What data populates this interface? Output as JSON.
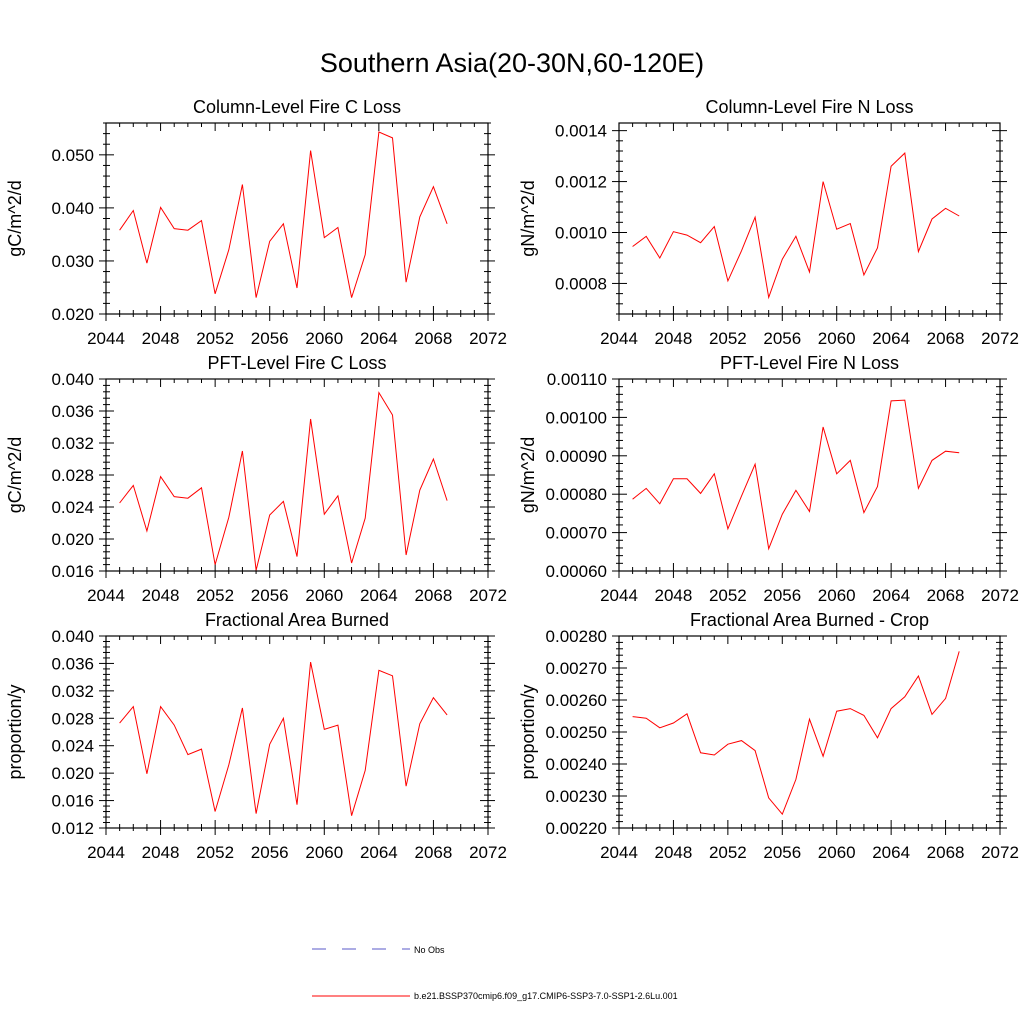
{
  "page": {
    "title": "Southern Asia(20-30N,60-120E)"
  },
  "legend": {
    "entries": [
      {
        "label": "No Obs",
        "style": "dashed",
        "color": "#5a5ac8"
      },
      {
        "label": "b.e21.BSSP370cmip6.f09_g17.CMIP6-SSP3-7.0-SSP1-2.6Lu.001",
        "style": "solid",
        "color": "#ff0000"
      }
    ]
  },
  "chart_data": [
    {
      "type": "line",
      "title": "Column-Level Fire C Loss",
      "ylabel": "gC/m^2/d",
      "xlim": [
        2044,
        2072
      ],
      "ylim": [
        0.02,
        0.056
      ],
      "xticks": [
        "2044",
        "2048",
        "2052",
        "2056",
        "2060",
        "2064",
        "2068",
        "2072"
      ],
      "yticks": [
        "0.020",
        "0.030",
        "0.040",
        "0.050"
      ],
      "series": [
        {
          "color": "#ff0000",
          "x": [
            2045,
            2046,
            2047,
            2048,
            2049,
            2050,
            2051,
            2052,
            2053,
            2054,
            2055,
            2056,
            2057,
            2058,
            2059,
            2060,
            2061,
            2062,
            2063,
            2064,
            2065,
            2066,
            2067,
            2068,
            2069
          ],
          "values": [
            0.0358,
            0.0395,
            0.0296,
            0.0401,
            0.0361,
            0.0358,
            0.0376,
            0.0238,
            0.0321,
            0.0444,
            0.0231,
            0.0337,
            0.037,
            0.0249,
            0.0508,
            0.0344,
            0.0363,
            0.0231,
            0.0312,
            0.0543,
            0.0532,
            0.026,
            0.0383,
            0.044,
            0.037
          ]
        }
      ]
    },
    {
      "type": "line",
      "title": "Column-Level Fire N Loss",
      "ylabel": "gN/m^2/d",
      "xlim": [
        2044,
        2072
      ],
      "ylim": [
        0.00068,
        0.00143
      ],
      "xticks": [
        "2044",
        "2048",
        "2052",
        "2056",
        "2060",
        "2064",
        "2068",
        "2072"
      ],
      "yticks": [
        "0.0008",
        "0.0010",
        "0.0012",
        "0.0014"
      ],
      "series": [
        {
          "color": "#ff0000",
          "x": [
            2045,
            2046,
            2047,
            2048,
            2049,
            2050,
            2051,
            2052,
            2053,
            2054,
            2055,
            2056,
            2057,
            2058,
            2059,
            2060,
            2061,
            2062,
            2063,
            2064,
            2065,
            2066,
            2067,
            2068,
            2069
          ],
          "values": [
            0.000945,
            0.000985,
            0.0009,
            0.001003,
            0.00099,
            0.00096,
            0.001023,
            0.00081,
            0.000928,
            0.00106,
            0.000745,
            0.000895,
            0.000985,
            0.000845,
            0.0012,
            0.001013,
            0.001035,
            0.000833,
            0.00094,
            0.00126,
            0.001312,
            0.000925,
            0.001053,
            0.001095,
            0.001065
          ]
        }
      ]
    },
    {
      "type": "line",
      "title": "PFT-Level Fire C Loss",
      "ylabel": "gC/m^2/d",
      "xlim": [
        2044,
        2072
      ],
      "ylim": [
        0.016,
        0.04
      ],
      "xticks": [
        "2044",
        "2048",
        "2052",
        "2056",
        "2060",
        "2064",
        "2068",
        "2072"
      ],
      "yticks": [
        "0.016",
        "0.020",
        "0.024",
        "0.028",
        "0.032",
        "0.036",
        "0.040"
      ],
      "series": [
        {
          "color": "#ff0000",
          "x": [
            2045,
            2046,
            2047,
            2048,
            2049,
            2050,
            2051,
            2052,
            2053,
            2054,
            2055,
            2056,
            2057,
            2058,
            2059,
            2060,
            2061,
            2062,
            2063,
            2064,
            2065,
            2066,
            2067,
            2068,
            2069
          ],
          "values": [
            0.0245,
            0.0267,
            0.021,
            0.0278,
            0.0253,
            0.0251,
            0.0264,
            0.0168,
            0.0227,
            0.031,
            0.0161,
            0.023,
            0.0247,
            0.0178,
            0.035,
            0.0231,
            0.0254,
            0.017,
            0.0226,
            0.0383,
            0.0355,
            0.018,
            0.0261,
            0.03,
            0.0248
          ]
        }
      ]
    },
    {
      "type": "line",
      "title": "PFT-Level Fire N Loss",
      "ylabel": "gN/m^2/d",
      "xlim": [
        2044,
        2072
      ],
      "ylim": [
        0.0006,
        0.0011
      ],
      "xticks": [
        "2044",
        "2048",
        "2052",
        "2056",
        "2060",
        "2064",
        "2068",
        "2072"
      ],
      "yticks": [
        "0.00060",
        "0.00070",
        "0.00080",
        "0.00090",
        "0.00100",
        "0.00110"
      ],
      "series": [
        {
          "color": "#ff0000",
          "x": [
            2045,
            2046,
            2047,
            2048,
            2049,
            2050,
            2051,
            2052,
            2053,
            2054,
            2055,
            2056,
            2057,
            2058,
            2059,
            2060,
            2061,
            2062,
            2063,
            2064,
            2065,
            2066,
            2067,
            2068,
            2069
          ],
          "values": [
            0.000787,
            0.000815,
            0.000775,
            0.00084,
            0.00084,
            0.000802,
            0.000853,
            0.00071,
            0.000795,
            0.000878,
            0.000658,
            0.000748,
            0.00081,
            0.000755,
            0.000975,
            0.000853,
            0.000888,
            0.000752,
            0.00082,
            0.001043,
            0.001045,
            0.000815,
            0.000888,
            0.000912,
            0.000908
          ]
        }
      ]
    },
    {
      "type": "line",
      "title": "Fractional Area Burned",
      "ylabel": "proportion/y",
      "xlim": [
        2044,
        2072
      ],
      "ylim": [
        0.012,
        0.04
      ],
      "xticks": [
        "2044",
        "2048",
        "2052",
        "2056",
        "2060",
        "2064",
        "2068",
        "2072"
      ],
      "yticks": [
        "0.012",
        "0.016",
        "0.020",
        "0.024",
        "0.028",
        "0.032",
        "0.036",
        "0.040"
      ],
      "series": [
        {
          "color": "#ff0000",
          "x": [
            2045,
            2046,
            2047,
            2048,
            2049,
            2050,
            2051,
            2052,
            2053,
            2054,
            2055,
            2056,
            2057,
            2058,
            2059,
            2060,
            2061,
            2062,
            2063,
            2064,
            2065,
            2066,
            2067,
            2068,
            2069
          ],
          "values": [
            0.0273,
            0.0297,
            0.0199,
            0.0297,
            0.027,
            0.0227,
            0.0235,
            0.0144,
            0.0212,
            0.0295,
            0.0141,
            0.0242,
            0.028,
            0.0154,
            0.0362,
            0.0264,
            0.027,
            0.0138,
            0.0204,
            0.035,
            0.0342,
            0.0181,
            0.0272,
            0.031,
            0.0285
          ]
        }
      ]
    },
    {
      "type": "line",
      "title": "Fractional Area Burned - Crop",
      "ylabel": "proportion/y",
      "xlim": [
        2044,
        2072
      ],
      "ylim": [
        0.0022,
        0.0028
      ],
      "xticks": [
        "2044",
        "2048",
        "2052",
        "2056",
        "2060",
        "2064",
        "2068",
        "2072"
      ],
      "yticks": [
        "0.00220",
        "0.00230",
        "0.00240",
        "0.00250",
        "0.00260",
        "0.00270",
        "0.00280"
      ],
      "series": [
        {
          "color": "#ff0000",
          "x": [
            2045,
            2046,
            2047,
            2048,
            2049,
            2050,
            2051,
            2052,
            2053,
            2054,
            2055,
            2056,
            2057,
            2058,
            2059,
            2060,
            2061,
            2062,
            2063,
            2064,
            2065,
            2066,
            2067,
            2068,
            2069
          ],
          "values": [
            0.002548,
            0.002543,
            0.002513,
            0.002528,
            0.002557,
            0.002435,
            0.002428,
            0.002462,
            0.002473,
            0.002442,
            0.002294,
            0.002243,
            0.002352,
            0.00254,
            0.002424,
            0.002565,
            0.002573,
            0.002552,
            0.002482,
            0.002573,
            0.00261,
            0.002675,
            0.002555,
            0.002605,
            0.002752
          ]
        }
      ]
    }
  ]
}
